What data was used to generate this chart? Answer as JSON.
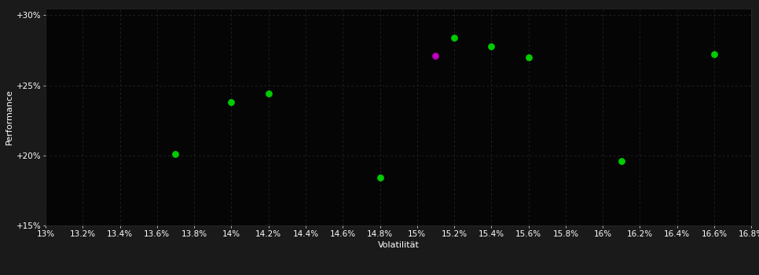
{
  "background_color": "#1a1a1a",
  "plot_bg_color": "#050505",
  "grid_color": "#2a2a2a",
  "text_color": "#ffffff",
  "xlabel": "Volatilität",
  "ylabel": "Performance",
  "xlim": [
    0.13,
    0.168
  ],
  "ylim": [
    0.15,
    0.305
  ],
  "xtick_values": [
    0.13,
    0.132,
    0.134,
    0.136,
    0.138,
    0.14,
    0.142,
    0.144,
    0.146,
    0.148,
    0.15,
    0.152,
    0.154,
    0.156,
    0.158,
    0.16,
    0.162,
    0.164,
    0.166,
    0.168
  ],
  "xtick_labels": [
    "13%",
    "13.2%",
    "13.4%",
    "13.6%",
    "13.8%",
    "14%",
    "14.2%",
    "14.4%",
    "14.6%",
    "14.8%",
    "15%",
    "15.2%",
    "15.4%",
    "15.6%",
    "15.8%",
    "16%",
    "16.2%",
    "16.4%",
    "16.6%",
    "16.8%"
  ],
  "ytick_values": [
    0.15,
    0.2,
    0.25,
    0.3
  ],
  "ytick_labels": [
    "+15%",
    "+20%",
    "+25%",
    "+30%"
  ],
  "points_green": [
    [
      0.137,
      0.201
    ],
    [
      0.14,
      0.238
    ],
    [
      0.142,
      0.244
    ],
    [
      0.148,
      0.184
    ],
    [
      0.152,
      0.284
    ],
    [
      0.154,
      0.278
    ],
    [
      0.156,
      0.27
    ],
    [
      0.161,
      0.196
    ],
    [
      0.166,
      0.272
    ]
  ],
  "points_magenta": [
    [
      0.151,
      0.271
    ]
  ],
  "marker_size": 40,
  "green_color": "#00cc00",
  "magenta_color": "#bb00bb",
  "axis_fontsize": 8,
  "tick_fontsize": 7.5
}
